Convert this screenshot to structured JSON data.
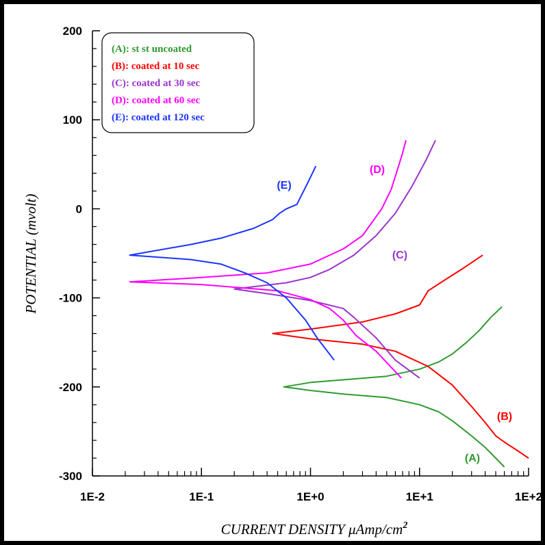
{
  "chart_data": {
    "type": "line",
    "xlabel": "CURRENT DENSITY μAmp/cm",
    "xlabel_sup": "2",
    "ylabel": "POTENTIAL (mvolt)",
    "xscale": "log",
    "xlim": [
      0.01,
      100
    ],
    "ylim": [
      -300,
      200
    ],
    "grid": false,
    "legend_position": "top-left",
    "x_ticks": [
      {
        "value": 0.01,
        "label": "1E-2"
      },
      {
        "value": 0.1,
        "label": "1E-1"
      },
      {
        "value": 1,
        "label": "1E+0"
      },
      {
        "value": 10,
        "label": "1E+1"
      },
      {
        "value": 100,
        "label": "1E+2"
      }
    ],
    "y_ticks": [
      {
        "value": 200,
        "label": "200"
      },
      {
        "value": 100,
        "label": "100"
      },
      {
        "value": 0,
        "label": "0"
      },
      {
        "value": -100,
        "label": "-100"
      },
      {
        "value": -200,
        "label": "-200"
      },
      {
        "value": -300,
        "label": "-300"
      }
    ],
    "series": [
      {
        "name": "(A): st st uncoated",
        "tag": "(A)",
        "color": "#2e9a2e",
        "x": [
          57,
          45,
          35,
          27,
          20,
          15,
          10,
          5,
          2,
          1,
          0.57,
          1,
          2,
          5,
          10,
          15,
          20,
          30,
          40,
          50,
          60
        ],
        "y": [
          -110,
          -122,
          -137,
          -150,
          -163,
          -172,
          -180,
          -188,
          -192,
          -195,
          -200,
          -204,
          -208,
          -212,
          -220,
          -228,
          -238,
          -255,
          -268,
          -280,
          -290
        ]
      },
      {
        "name": "(B): coated at 10 sec",
        "tag": "(B)",
        "color": "#ff0000",
        "x": [
          38,
          25,
          17,
          12,
          10,
          6,
          3,
          1,
          0.45,
          1,
          3,
          6,
          12,
          20,
          30,
          40,
          50,
          60,
          80,
          100
        ],
        "y": [
          -52,
          -67,
          -80,
          -92,
          -108,
          -118,
          -127,
          -135,
          -140,
          -146,
          -152,
          -160,
          -177,
          -198,
          -222,
          -240,
          -255,
          -262,
          -272,
          -280
        ]
      },
      {
        "name": "(C): coated at 30 sec",
        "tag": "(C)",
        "color": "#9933cc",
        "x": [
          14,
          11.5,
          8.5,
          6,
          4,
          2.5,
          1.5,
          1,
          0.6,
          0.2,
          0.5,
          1,
          2,
          2.5,
          4,
          6,
          10
        ],
        "y": [
          77,
          55,
          25,
          -5,
          -30,
          -52,
          -68,
          -77,
          -83,
          -90,
          -97,
          -103,
          -112,
          -122,
          -145,
          -170,
          -190
        ]
      },
      {
        "name": "(D): coated at 60 sec",
        "tag": "(D)",
        "color": "#ff00ff",
        "x": [
          7.5,
          7,
          6.2,
          5.5,
          4.5,
          3,
          2,
          1,
          0.4,
          0.1,
          0.022,
          0.1,
          0.5,
          1,
          1.5,
          2,
          2.6,
          4,
          6.8
        ],
        "y": [
          77,
          63,
          42,
          22,
          0,
          -30,
          -45,
          -62,
          -72,
          -77,
          -82,
          -85,
          -92,
          -102,
          -112,
          -125,
          -142,
          -160,
          -190
        ]
      },
      {
        "name": "(E): coated at 120 sec",
        "tag": "(E)",
        "color": "#1a33ff",
        "x": [
          1.12,
          0.95,
          0.75,
          0.6,
          0.52,
          0.45,
          0.3,
          0.15,
          0.08,
          0.022,
          0.08,
          0.15,
          0.25,
          0.4,
          0.6,
          0.9,
          1.15,
          1.65
        ],
        "y": [
          48,
          30,
          5,
          0,
          -5,
          -12,
          -22,
          -33,
          -40,
          -52,
          -57,
          -62,
          -72,
          -83,
          -100,
          -125,
          -145,
          -170
        ]
      }
    ],
    "labels": [
      {
        "text": "(A)",
        "color": "#2e9a2e"
      },
      {
        "text": "(B)",
        "color": "#ff0000"
      },
      {
        "text": "(C)",
        "color": "#9933cc"
      },
      {
        "text": "(D)",
        "color": "#ff00ff"
      },
      {
        "text": "(E)",
        "color": "#1a33ff"
      }
    ]
  }
}
